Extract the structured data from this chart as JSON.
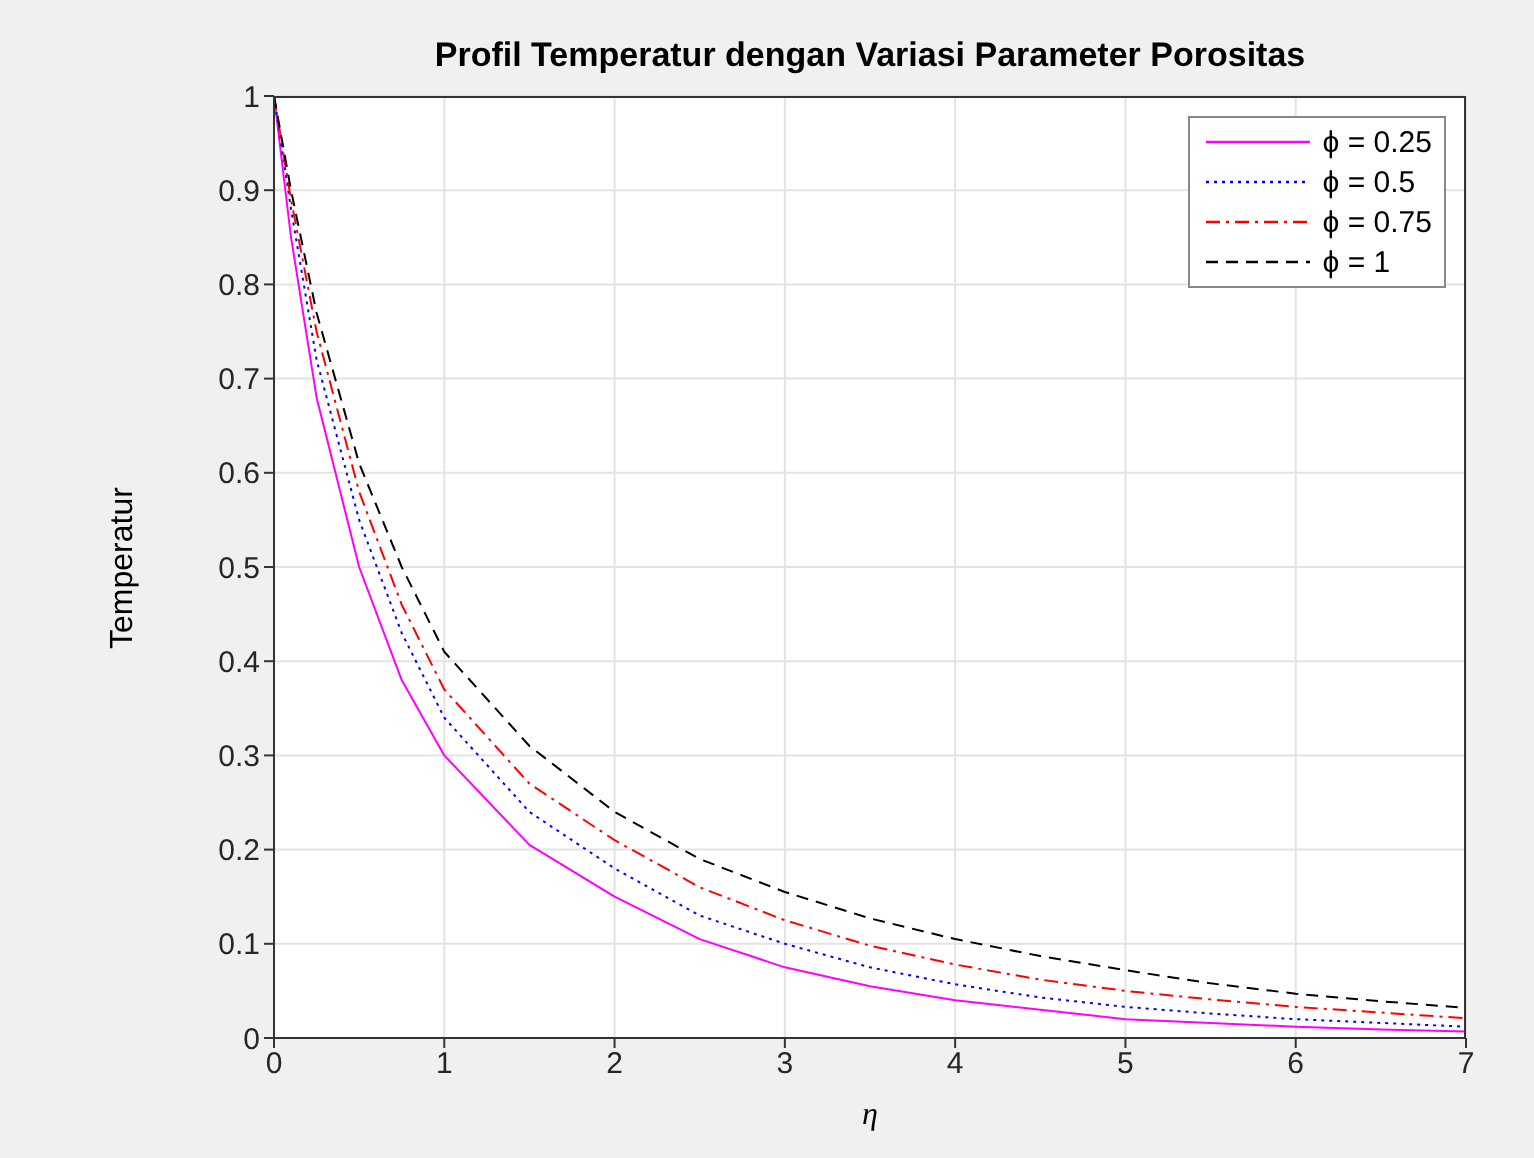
{
  "chart_data": {
    "type": "line",
    "title": "Profil Temperatur dengan Variasi Parameter Porositas",
    "xlabel": "η",
    "ylabel": "Temperatur",
    "x": [
      0,
      0.1,
      0.25,
      0.5,
      0.75,
      1,
      1.5,
      2,
      2.5,
      3,
      3.5,
      4,
      4.5,
      5,
      5.5,
      6,
      6.5,
      7
    ],
    "series": [
      {
        "name": "ϕ = 0.25",
        "color": "#ff00ff",
        "line_style": "solid",
        "values": [
          1,
          0.85,
          0.68,
          0.5,
          0.38,
          0.3,
          0.205,
          0.15,
          0.105,
          0.075,
          0.055,
          0.04,
          0.03,
          0.02,
          0.016,
          0.012,
          0.009,
          0.007
        ]
      },
      {
        "name": "ϕ = 0.5",
        "color": "#0000ff",
        "line_style": "dotted",
        "values": [
          1,
          0.88,
          0.72,
          0.55,
          0.43,
          0.34,
          0.24,
          0.18,
          0.13,
          0.1,
          0.075,
          0.057,
          0.043,
          0.033,
          0.026,
          0.02,
          0.016,
          0.012
        ]
      },
      {
        "name": "ϕ = 0.75",
        "color": "#ff0000",
        "line_style": "dashdot",
        "values": [
          1,
          0.89,
          0.75,
          0.58,
          0.46,
          0.37,
          0.27,
          0.21,
          0.16,
          0.125,
          0.098,
          0.078,
          0.062,
          0.05,
          0.041,
          0.033,
          0.027,
          0.021
        ]
      },
      {
        "name": "ϕ = 1",
        "color": "#000000",
        "line_style": "dashed",
        "values": [
          1,
          0.9,
          0.77,
          0.61,
          0.5,
          0.41,
          0.31,
          0.24,
          0.19,
          0.155,
          0.127,
          0.105,
          0.087,
          0.072,
          0.058,
          0.047,
          0.039,
          0.032
        ]
      }
    ],
    "xlim": [
      0,
      7
    ],
    "xticks": [
      0,
      1,
      2,
      3,
      4,
      5,
      6,
      7
    ],
    "ylim": [
      0,
      1
    ],
    "yticks": [
      0,
      0.1,
      0.2,
      0.3,
      0.4,
      0.5,
      0.6,
      0.7,
      0.8,
      0.9,
      1
    ],
    "grid": true,
    "legend": "top right",
    "marker": "none"
  }
}
